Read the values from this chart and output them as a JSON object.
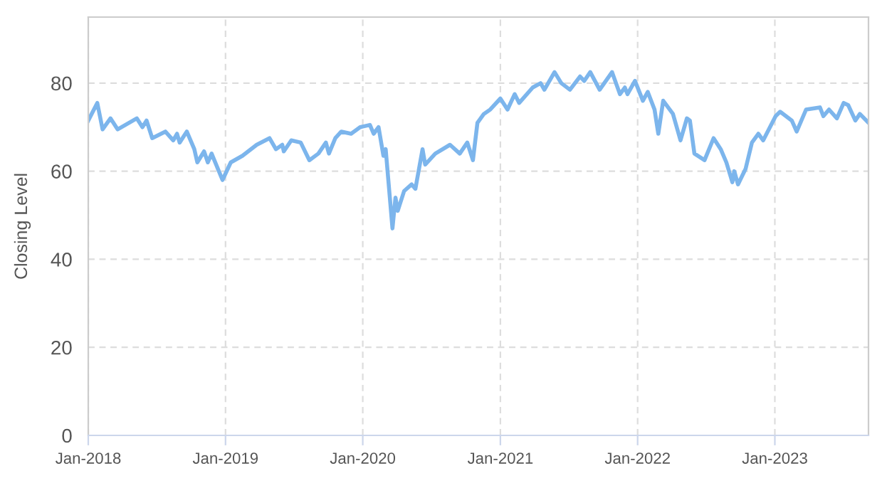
{
  "chart_data": {
    "type": "line",
    "ylabel": "Closing Level",
    "x": [
      "2018-01-01",
      "2018-01-25",
      "2018-02-08",
      "2018-03-01",
      "2018-03-20",
      "2018-05-10",
      "2018-05-25",
      "2018-06-05",
      "2018-06-20",
      "2018-07-25",
      "2018-08-15",
      "2018-08-25",
      "2018-09-01",
      "2018-09-20",
      "2018-10-10",
      "2018-10-18",
      "2018-11-05",
      "2018-11-15",
      "2018-11-25",
      "2018-12-24",
      "2019-01-15",
      "2019-02-15",
      "2019-03-25",
      "2019-04-28",
      "2019-05-15",
      "2019-06-01",
      "2019-06-05",
      "2019-06-25",
      "2019-07-20",
      "2019-08-12",
      "2019-09-05",
      "2019-09-25",
      "2019-10-03",
      "2019-10-20",
      "2019-11-05",
      "2019-12-01",
      "2019-12-25",
      "2020-01-20",
      "2020-01-30",
      "2020-02-12",
      "2020-02-25",
      "2020-03-02",
      "2020-03-20",
      "2020-03-28",
      "2020-04-03",
      "2020-04-20",
      "2020-05-10",
      "2020-05-20",
      "2020-06-08",
      "2020-06-15",
      "2020-07-12",
      "2020-08-20",
      "2020-09-15",
      "2020-10-05",
      "2020-10-20",
      "2020-11-01",
      "2020-11-18",
      "2020-12-05",
      "2021-01-01",
      "2021-01-20",
      "2021-02-08",
      "2021-02-20",
      "2021-03-28",
      "2021-04-18",
      "2021-04-28",
      "2021-05-25",
      "2021-06-12",
      "2021-07-05",
      "2021-08-01",
      "2021-08-12",
      "2021-08-28",
      "2021-09-22",
      "2021-10-25",
      "2021-11-15",
      "2021-11-28",
      "2021-12-05",
      "2021-12-25",
      "2022-01-15",
      "2022-01-28",
      "2022-02-15",
      "2022-02-25",
      "2022-03-10",
      "2022-04-05",
      "2022-04-25",
      "2022-05-12",
      "2022-05-20",
      "2022-06-01",
      "2022-06-28",
      "2022-07-22",
      "2022-08-10",
      "2022-08-25",
      "2022-09-10",
      "2022-09-15",
      "2022-09-25",
      "2022-10-15",
      "2022-11-01",
      "2022-11-18",
      "2022-12-01",
      "2023-01-03",
      "2023-01-15",
      "2023-02-15",
      "2023-02-28",
      "2023-03-25",
      "2023-05-01",
      "2023-05-10",
      "2023-05-25",
      "2023-06-15",
      "2023-07-03",
      "2023-07-15",
      "2023-08-03",
      "2023-08-15",
      "2023-09-07"
    ],
    "series": [
      {
        "color": "#7cb5ec",
        "values": [
          71.5,
          75.5,
          69.5,
          72,
          69.5,
          72,
          70,
          71.5,
          67.5,
          69,
          67,
          68.5,
          66.5,
          69,
          65,
          62,
          64.5,
          62,
          64,
          58,
          62,
          63.5,
          66,
          67.5,
          65,
          66,
          64.5,
          67,
          66.5,
          62.5,
          64,
          66.5,
          64,
          67.5,
          69,
          68.5,
          70,
          70.5,
          68.5,
          70,
          63.5,
          65,
          47,
          54,
          51,
          55.5,
          57,
          56,
          65,
          61.5,
          64,
          66,
          64,
          66.5,
          62.5,
          71,
          73,
          74,
          76.5,
          74,
          77.5,
          75.5,
          79,
          80,
          78.5,
          82.5,
          80,
          78.5,
          81.5,
          80.5,
          82.5,
          78.5,
          82.5,
          77.5,
          79,
          77.5,
          80.5,
          76,
          78,
          74,
          68.5,
          76,
          73,
          67,
          72,
          71.5,
          64,
          62.5,
          67.5,
          65,
          62,
          57.5,
          60,
          57,
          60.5,
          66.5,
          68.5,
          67,
          72.5,
          73.5,
          71.5,
          69,
          74,
          74.5,
          72.5,
          74,
          72,
          75.5,
          75,
          71.5,
          73,
          71
        ]
      }
    ],
    "xlim": [
      "2018-01-01",
      "2023-09-07"
    ],
    "xticks": [
      {
        "value": "2018-01-01",
        "label": "Jan-2018"
      },
      {
        "value": "2019-01-01",
        "label": "Jan-2019"
      },
      {
        "value": "2020-01-01",
        "label": "Jan-2020"
      },
      {
        "value": "2021-01-01",
        "label": "Jan-2021"
      },
      {
        "value": "2022-01-01",
        "label": "Jan-2022"
      },
      {
        "value": "2023-01-01",
        "label": "Jan-2023"
      }
    ],
    "ylim": [
      0,
      95
    ],
    "yticks": [
      0,
      20,
      40,
      60,
      80
    ],
    "grid": true,
    "marker": "none",
    "line_style": "solid",
    "legend": false
  }
}
